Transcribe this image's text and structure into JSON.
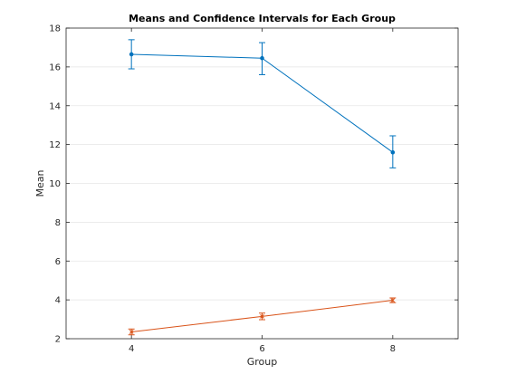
{
  "chart_data": {
    "type": "line",
    "title": "Means and Confidence Intervals for Each Group",
    "xlabel": "Group",
    "ylabel": "Mean",
    "xlim": [
      3,
      9
    ],
    "ylim": [
      2,
      18
    ],
    "x": [
      4,
      6,
      8
    ],
    "xticks": [
      4,
      6,
      8
    ],
    "yticks": [
      2,
      4,
      6,
      8,
      10,
      12,
      14,
      16,
      18
    ],
    "grid": "horizontal",
    "legend": "none",
    "series": [
      {
        "color": "#0072BD",
        "values": [
          16.65,
          16.45,
          11.6
        ],
        "ci_low": [
          15.9,
          15.6,
          10.8
        ],
        "ci_high": [
          17.4,
          17.25,
          12.45
        ]
      },
      {
        "color": "#D95319",
        "values": [
          2.35,
          3.15,
          3.98
        ],
        "ci_low": [
          2.2,
          2.98,
          3.86
        ],
        "ci_high": [
          2.5,
          3.32,
          4.1
        ]
      }
    ]
  }
}
